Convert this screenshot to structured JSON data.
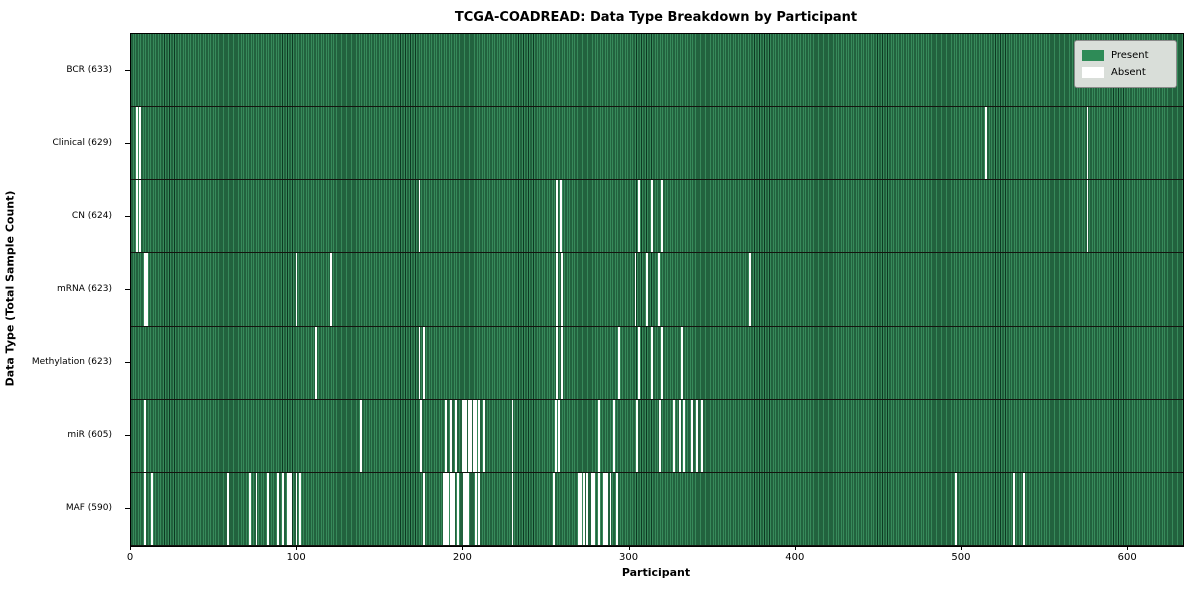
{
  "chart_data": {
    "type": "heatmap",
    "title": "TCGA-COADREAD: Data Type Breakdown by Participant",
    "xlabel": "Participant",
    "ylabel": "Data Type (Total Sample Count)",
    "n_participants": 633,
    "x_ticks": [
      0,
      100,
      200,
      300,
      400,
      500,
      600
    ],
    "grid": false,
    "legend_position": "upper right",
    "colors": {
      "present": "#2e8b57",
      "absent": "#ffffff",
      "row_separator": "#14140f"
    },
    "legend": [
      {
        "label": "Present",
        "color": "#2e8b57"
      },
      {
        "label": "Absent",
        "color": "#ffffff"
      }
    ],
    "rows": [
      {
        "name": "bcr",
        "label": "BCR (633)",
        "data_type": "BCR",
        "total_samples": 633,
        "absent_participants": []
      },
      {
        "name": "clinical",
        "label": "Clinical (629)",
        "data_type": "Clinical",
        "total_samples": 629,
        "absent_participants": [
          3,
          5,
          514,
          575
        ]
      },
      {
        "name": "cn",
        "label": "CN (624)",
        "data_type": "CN",
        "total_samples": 624,
        "absent_participants": [
          3,
          5,
          173,
          256,
          258,
          305,
          313,
          319,
          575
        ]
      },
      {
        "name": "mrna",
        "label": "mRNA (623)",
        "data_type": "mRNA",
        "total_samples": 623,
        "absent_participants": [
          8,
          9,
          99,
          120,
          256,
          259,
          303,
          310,
          317,
          372
        ]
      },
      {
        "name": "methylation",
        "label": "Methylation (623)",
        "data_type": "Methylation",
        "total_samples": 623,
        "absent_participants": [
          111,
          173,
          176,
          256,
          259,
          293,
          305,
          313,
          319,
          331
        ]
      },
      {
        "name": "mir",
        "label": "miR (605)",
        "data_type": "miR",
        "total_samples": 605,
        "absent_participants": [
          8,
          138,
          174,
          189,
          192,
          195,
          199,
          200,
          201,
          203,
          204,
          206,
          207,
          209,
          212,
          229,
          255,
          257,
          281,
          290,
          304,
          318,
          326,
          330,
          332,
          337,
          340,
          343
        ]
      },
      {
        "name": "maf",
        "label": "MAF (590)",
        "data_type": "MAF",
        "total_samples": 590,
        "absent_participants": [
          8,
          12,
          58,
          71,
          75,
          82,
          88,
          91,
          94,
          95,
          96,
          99,
          101,
          176,
          188,
          189,
          190,
          192,
          193,
          194,
          196,
          200,
          201,
          202,
          207,
          209,
          229,
          254,
          269,
          270,
          272,
          274,
          277,
          278,
          281,
          284,
          285,
          286,
          288,
          292,
          496,
          531,
          537
        ]
      }
    ]
  }
}
